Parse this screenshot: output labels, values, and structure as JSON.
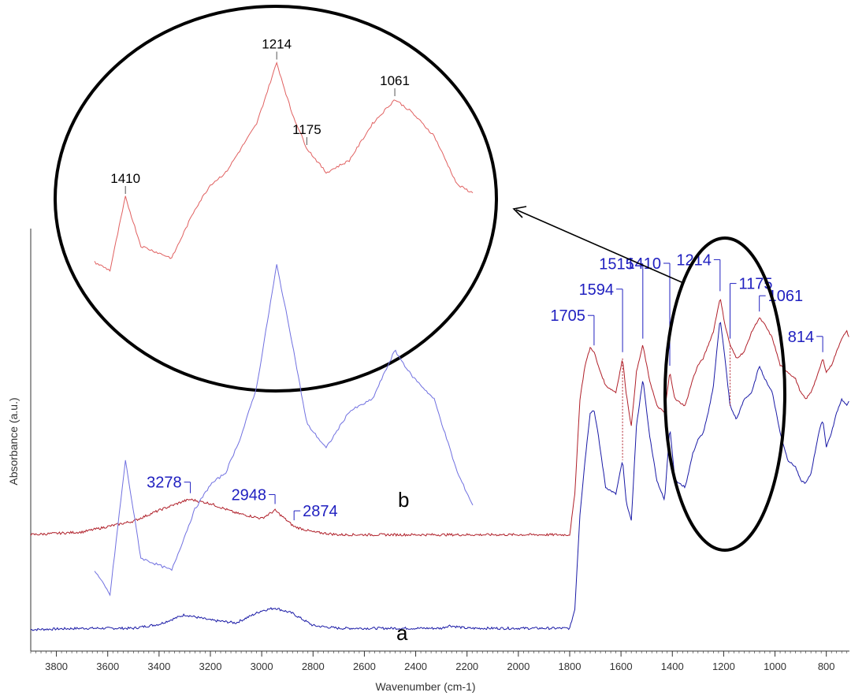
{
  "colors": {
    "a": "#1a1aa6",
    "b": "#b0202a",
    "inset_a": "#7070e0",
    "inset_b": "#e06060",
    "annotation": "#2020c0",
    "axis": "#333333"
  },
  "chart_data": {
    "type": "line",
    "xlabel": "Wavenumber (cm-1)",
    "ylabel": "Absorbance (a.u.)",
    "xlim": [
      3900,
      710
    ],
    "x_reversed": true,
    "x_ticks": [
      3800,
      3600,
      3400,
      3200,
      3000,
      2800,
      2600,
      2400,
      2200,
      2000,
      1800,
      1600,
      1400,
      1200,
      1000,
      800
    ],
    "grid": false,
    "series": [
      {
        "name": "a",
        "x": [
          3900,
          3700,
          3500,
          3400,
          3300,
          3200,
          3100,
          3000,
          2948,
          2880,
          2800,
          2700,
          2500,
          2300,
          2270,
          2200,
          2000,
          1800,
          1780,
          1760,
          1740,
          1720,
          1705,
          1690,
          1660,
          1620,
          1594,
          1580,
          1560,
          1540,
          1515,
          1490,
          1460,
          1430,
          1410,
          1390,
          1350,
          1320,
          1300,
          1280,
          1260,
          1240,
          1214,
          1195,
          1175,
          1150,
          1120,
          1090,
          1061,
          1040,
          1010,
          980,
          950,
          920,
          900,
          880,
          860,
          830,
          814,
          800,
          780,
          760,
          740,
          720,
          710
        ],
        "y": [
          0.1,
          0.11,
          0.11,
          0.14,
          0.21,
          0.17,
          0.15,
          0.24,
          0.26,
          0.22,
          0.13,
          0.11,
          0.11,
          0.11,
          0.13,
          0.11,
          0.11,
          0.11,
          0.25,
          0.95,
          1.35,
          1.7,
          1.72,
          1.55,
          1.15,
          1.1,
          1.35,
          1.05,
          0.9,
          1.6,
          1.95,
          1.55,
          1.2,
          1.05,
          1.6,
          1.2,
          1.15,
          1.4,
          1.5,
          1.55,
          1.7,
          1.9,
          2.4,
          2.1,
          1.75,
          1.65,
          1.8,
          1.85,
          2.05,
          1.95,
          1.85,
          1.55,
          1.35,
          1.3,
          1.2,
          1.18,
          1.25,
          1.55,
          1.65,
          1.45,
          1.55,
          1.7,
          1.8,
          1.75,
          1.8
        ]
      },
      {
        "name": "b",
        "x": [
          3900,
          3700,
          3500,
          3400,
          3300,
          3278,
          3200,
          3100,
          3000,
          2948,
          2874,
          2800,
          2700,
          2500,
          2300,
          2000,
          1800,
          1780,
          1760,
          1740,
          1720,
          1705,
          1690,
          1660,
          1620,
          1594,
          1580,
          1560,
          1540,
          1515,
          1490,
          1460,
          1430,
          1410,
          1390,
          1350,
          1320,
          1300,
          1280,
          1260,
          1240,
          1214,
          1195,
          1175,
          1150,
          1120,
          1090,
          1061,
          1040,
          1010,
          980,
          950,
          920,
          900,
          880,
          860,
          830,
          814,
          800,
          780,
          760,
          740,
          720,
          710
        ],
        "y": [
          0.8,
          0.82,
          0.9,
          0.98,
          1.05,
          1.06,
          1.03,
          0.96,
          0.92,
          0.98,
          0.86,
          0.82,
          0.8,
          0.8,
          0.8,
          0.8,
          0.8,
          1.1,
          1.8,
          2.05,
          2.18,
          2.15,
          2.05,
          1.9,
          1.85,
          2.1,
          1.85,
          1.6,
          2.0,
          2.2,
          1.95,
          1.75,
          1.7,
          2.0,
          1.8,
          1.75,
          1.95,
          2.05,
          2.1,
          2.2,
          2.3,
          2.55,
          2.35,
          2.2,
          2.1,
          2.15,
          2.3,
          2.4,
          2.35,
          2.25,
          2.05,
          2.0,
          1.95,
          1.85,
          1.8,
          1.85,
          2.0,
          2.1,
          2.0,
          2.05,
          2.15,
          2.25,
          2.3,
          2.25
        ]
      }
    ],
    "series_labels": [
      "a",
      "b"
    ],
    "annotations": {
      "peaks_b": [
        "1705",
        "1594",
        "1515",
        "1410",
        "1214",
        "1175",
        "1061",
        "814"
      ],
      "peaks_b_wavenumbers": [
        1705,
        1594,
        1515,
        1410,
        1214,
        1175,
        1061,
        814
      ],
      "peaks_b_high": [
        "3278",
        "2948",
        "2874"
      ],
      "peaks_b_high_wavenumbers": [
        3278,
        2948,
        2874
      ]
    },
    "inset": {
      "description_free": true,
      "xlim": [
        1450,
        960
      ],
      "peak_labels": [
        "1410",
        "1214",
        "1175",
        "1061"
      ],
      "peak_wavenumbers": [
        1410,
        1214,
        1175,
        1061
      ],
      "zoom_region_center": 1200
    }
  }
}
